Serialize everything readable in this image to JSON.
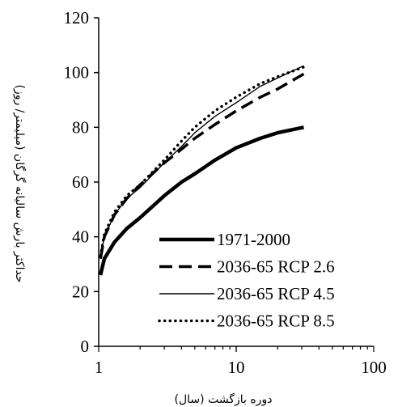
{
  "chart_data": {
    "type": "line",
    "xscale": "log",
    "xlim": [
      1,
      100
    ],
    "ylim": [
      0,
      120
    ],
    "xticks": [
      1,
      10,
      100
    ],
    "xtick_labels": [
      "1",
      "10",
      "100"
    ],
    "yticks": [
      0,
      20,
      40,
      60,
      80,
      100,
      120
    ],
    "ytick_labels": [
      "0",
      "20",
      "40",
      "60",
      "80",
      "100",
      "120"
    ],
    "xlabel": "دوره بازگشت (سال)",
    "ylabel": "حداکثر بارش سالیانه گرگان (میلیمتر/ روز)",
    "grid": false,
    "legend_position": "bottom-right",
    "series": [
      {
        "name": "1971-2000",
        "style": "thick-solid",
        "color": "#000000",
        "x": [
          1.03,
          1.1,
          1.3,
          1.6,
          2,
          3,
          4,
          5,
          7,
          10,
          15,
          20,
          31
        ],
        "y": [
          26,
          32,
          38,
          43,
          47,
          55,
          60,
          63,
          68,
          72.5,
          76,
          78,
          80
        ]
      },
      {
        "name": "2036-65 RCP 2.6",
        "style": "dashed",
        "color": "#000000",
        "x": [
          1.03,
          1.1,
          1.3,
          1.6,
          2,
          3,
          4,
          5,
          7,
          10,
          15,
          20,
          31
        ],
        "y": [
          32,
          40,
          48,
          54,
          59,
          67,
          72,
          76,
          81,
          86,
          91,
          94,
          99.5
        ]
      },
      {
        "name": "2036-65 RCP 4.5",
        "style": "thin-solid",
        "color": "#000000",
        "x": [
          1.03,
          1.1,
          1.3,
          1.6,
          2,
          3,
          4,
          5,
          7,
          10,
          15,
          20,
          31
        ],
        "y": [
          33,
          40,
          48,
          54,
          58,
          67,
          73,
          78,
          84,
          89,
          95,
          98,
          102.5
        ]
      },
      {
        "name": "2036-65 RCP 8.5",
        "style": "dotted",
        "color": "#000000",
        "x": [
          1.03,
          1.1,
          1.3,
          1.6,
          2,
          3,
          4,
          5,
          7,
          10,
          15,
          20,
          31
        ],
        "y": [
          33,
          41,
          49,
          55,
          59,
          68,
          75,
          80,
          86,
          91,
          96,
          98.5,
          102
        ]
      }
    ]
  }
}
